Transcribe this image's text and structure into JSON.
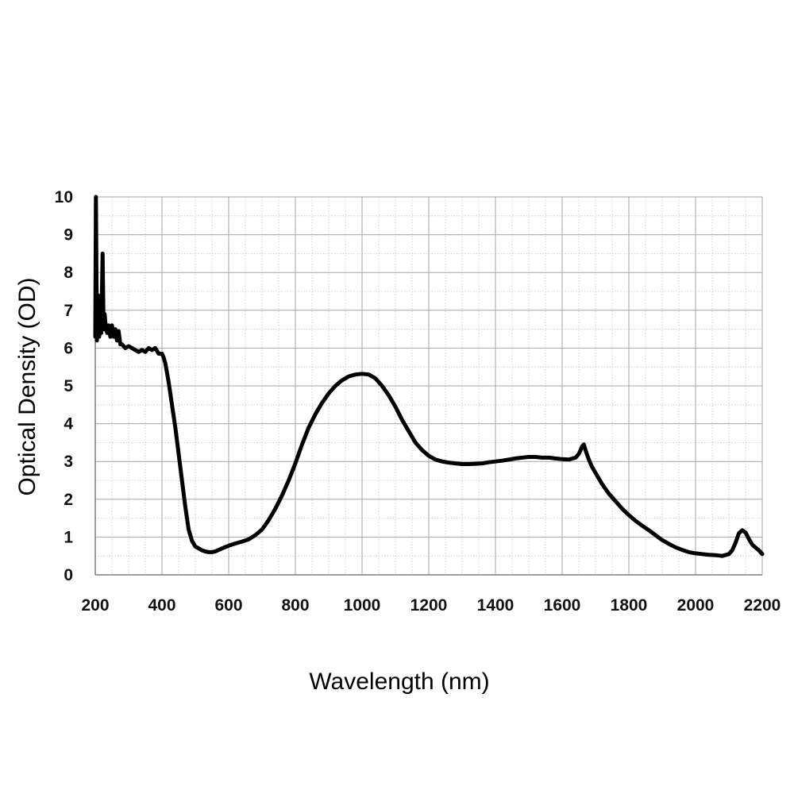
{
  "chart_data": {
    "type": "line",
    "title": "",
    "xlabel": "Wavelength (nm)",
    "ylabel": "Optical Density (OD)",
    "xlim": [
      200,
      2200
    ],
    "ylim": [
      0,
      10
    ],
    "x_ticks": [
      200,
      400,
      600,
      800,
      1000,
      1200,
      1400,
      1600,
      1800,
      2000,
      2200
    ],
    "y_ticks": [
      0,
      1,
      2,
      3,
      4,
      5,
      6,
      7,
      8,
      9,
      10
    ],
    "x_tick_labels": [
      "200",
      "400",
      "600",
      "800",
      "1000",
      "1200",
      "1400",
      "1600",
      "1800",
      "2000",
      "2200"
    ],
    "y_tick_labels": [
      "0",
      "1",
      "2",
      "3",
      "4",
      "5",
      "6",
      "7",
      "8",
      "9",
      "10"
    ],
    "x_minor_step": 50,
    "y_minor_step": 0.5,
    "grid": true,
    "legend": "none",
    "series_color": "#000000",
    "series": [
      {
        "x": [
          200,
          202,
          205,
          208,
          212,
          215,
          218,
          222,
          225,
          228,
          232,
          236,
          240,
          245,
          250,
          255,
          260,
          265,
          270,
          275,
          280,
          290,
          300,
          310,
          320,
          330,
          340,
          350,
          360,
          370,
          380,
          390,
          400,
          405,
          410,
          420,
          430,
          440,
          450,
          460,
          470,
          480,
          490,
          500,
          510,
          520,
          530,
          540,
          550,
          560,
          580,
          600,
          620,
          640,
          660,
          680,
          700,
          720,
          740,
          760,
          780,
          800,
          820,
          840,
          860,
          880,
          900,
          920,
          940,
          960,
          980,
          1000,
          1020,
          1040,
          1060,
          1080,
          1100,
          1120,
          1140,
          1160,
          1180,
          1200,
          1220,
          1240,
          1260,
          1280,
          1300,
          1320,
          1340,
          1360,
          1380,
          1400,
          1420,
          1440,
          1460,
          1480,
          1500,
          1520,
          1540,
          1560,
          1580,
          1600,
          1620,
          1640,
          1650,
          1660,
          1665,
          1670,
          1680,
          1690,
          1700,
          1720,
          1740,
          1760,
          1780,
          1800,
          1820,
          1840,
          1860,
          1880,
          1900,
          1920,
          1940,
          1960,
          1980,
          2000,
          2020,
          2040,
          2060,
          2080,
          2100,
          2110,
          2120,
          2130,
          2140,
          2150,
          2160,
          2170,
          2180,
          2190,
          2200
        ],
        "y": [
          6.3,
          10.0,
          6.2,
          7.4,
          6.3,
          7.3,
          6.4,
          8.5,
          6.5,
          6.9,
          6.5,
          6.4,
          6.6,
          6.3,
          6.6,
          6.3,
          6.5,
          6.2,
          6.45,
          6.1,
          6.1,
          6.0,
          6.05,
          6.0,
          5.95,
          5.9,
          5.95,
          5.9,
          6.0,
          5.95,
          6.0,
          5.85,
          5.85,
          5.75,
          5.6,
          5.1,
          4.5,
          3.9,
          3.2,
          2.5,
          1.8,
          1.2,
          0.9,
          0.75,
          0.7,
          0.65,
          0.62,
          0.6,
          0.6,
          0.62,
          0.7,
          0.77,
          0.83,
          0.88,
          0.94,
          1.05,
          1.2,
          1.45,
          1.75,
          2.1,
          2.5,
          2.95,
          3.45,
          3.9,
          4.25,
          4.55,
          4.8,
          5.0,
          5.15,
          5.25,
          5.3,
          5.32,
          5.3,
          5.2,
          5.0,
          4.75,
          4.45,
          4.1,
          3.8,
          3.5,
          3.3,
          3.15,
          3.05,
          3.0,
          2.97,
          2.95,
          2.93,
          2.93,
          2.94,
          2.95,
          2.98,
          3.0,
          3.02,
          3.05,
          3.08,
          3.1,
          3.12,
          3.12,
          3.1,
          3.1,
          3.08,
          3.06,
          3.05,
          3.1,
          3.2,
          3.4,
          3.45,
          3.3,
          3.05,
          2.85,
          2.7,
          2.4,
          2.15,
          1.95,
          1.75,
          1.58,
          1.43,
          1.3,
          1.18,
          1.05,
          0.92,
          0.82,
          0.73,
          0.66,
          0.6,
          0.57,
          0.55,
          0.53,
          0.52,
          0.5,
          0.55,
          0.65,
          0.85,
          1.1,
          1.18,
          1.12,
          0.95,
          0.8,
          0.72,
          0.65,
          0.55
        ]
      }
    ]
  }
}
